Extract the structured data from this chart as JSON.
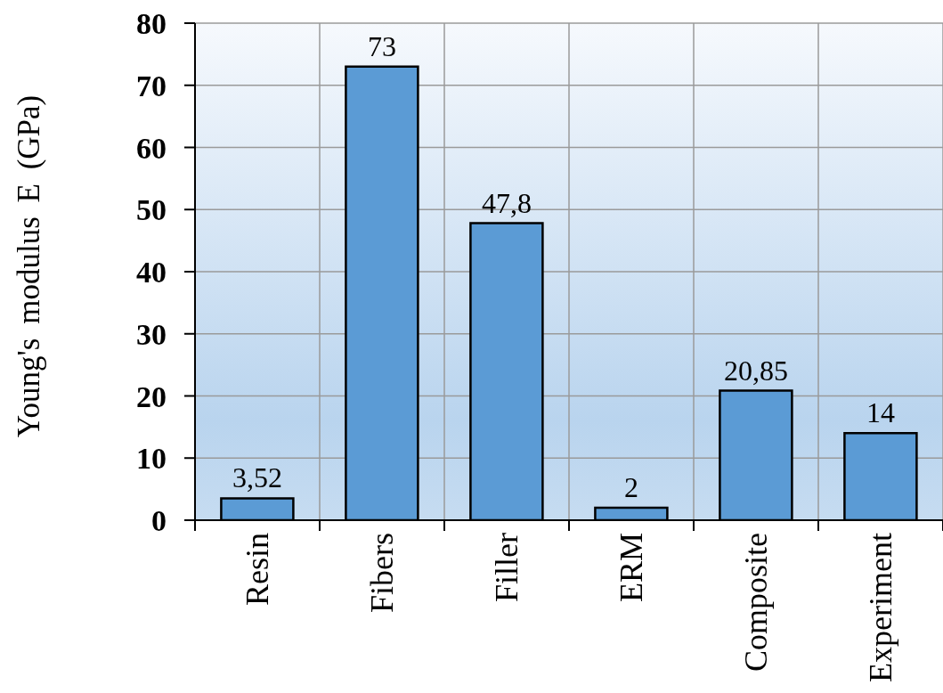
{
  "chart_data": {
    "type": "bar",
    "ylabel": "Young's modulus E (GPa)",
    "categories": [
      "Resin",
      "Fibers",
      "Filler",
      "ERM",
      "Composite",
      "Experiment"
    ],
    "values": [
      3.52,
      73,
      47.8,
      2,
      20.85,
      14
    ],
    "value_labels": [
      "3,52",
      "73",
      "47,8",
      "2",
      "20,85",
      "14"
    ],
    "color": "#5b9bd5",
    "ylim": [
      0,
      80
    ],
    "yticks": [
      0,
      10,
      20,
      30,
      40,
      50,
      60,
      70,
      80
    ],
    "grid": true
  }
}
